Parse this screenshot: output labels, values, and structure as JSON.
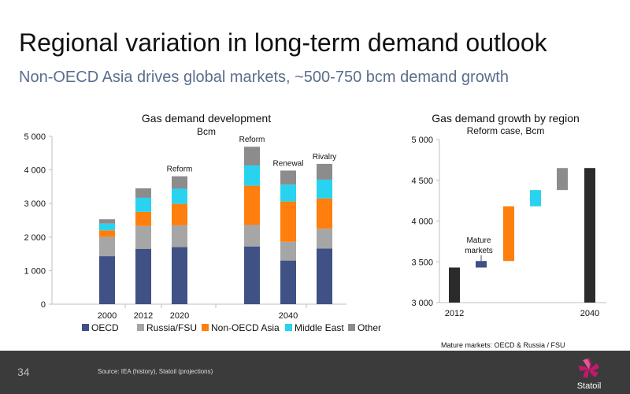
{
  "slide": {
    "title": "Regional variation in long-term demand outlook",
    "subtitle": "Non-OECD Asia drives global markets, ~500-750 bcm demand growth",
    "page_number": "34",
    "source": "Source: IEA (history), Statoil (projections)",
    "note": "Mature markets: OECD & Russia / FSU",
    "logo_text": "Statoil"
  },
  "colors": {
    "OECD": "#3f5185",
    "Russia/FSU": "#a6a6a6",
    "Non-OECD Asia": "#ff7f0e",
    "Middle East": "#29d3f0",
    "Other": "#8c8c8c",
    "dark_bar": "#2b2b2b",
    "footer_bg": "#3b3b3b",
    "logo": "#c3186b"
  },
  "chart_data": [
    {
      "type": "bar",
      "stacked": true,
      "title": "Gas demand development",
      "subtitle": "Bcm",
      "ylim": [
        0,
        5000
      ],
      "yticks": [
        "0",
        "1 000",
        "2 000",
        "3 000",
        "4 000",
        "5 000"
      ],
      "categories": [
        "2000",
        "2012",
        "2020",
        "",
        "2040",
        ""
      ],
      "bar_labels": [
        "",
        "",
        "Reform",
        "Reform",
        "Renewal",
        "Rivalry"
      ],
      "series": [
        {
          "name": "OECD",
          "values": [
            1430,
            1650,
            1700,
            1720,
            1300,
            1660
          ]
        },
        {
          "name": "Russia/FSU",
          "values": [
            570,
            680,
            650,
            640,
            560,
            590
          ]
        },
        {
          "name": "Non-OECD Asia",
          "values": [
            200,
            420,
            640,
            1170,
            1200,
            900
          ]
        },
        {
          "name": "Middle East",
          "values": [
            200,
            420,
            450,
            600,
            500,
            560
          ]
        },
        {
          "name": "Other",
          "values": [
            130,
            280,
            370,
            560,
            420,
            470
          ]
        }
      ],
      "legend": [
        "OECD",
        "Russia/FSU",
        "Non-OECD Asia",
        "Middle East",
        "Other"
      ],
      "legend_position": "bottom"
    },
    {
      "type": "waterfall",
      "title": "Gas demand growth by region",
      "subtitle": "Reform case, Bcm",
      "ylim": [
        3000,
        5000
      ],
      "yticks": [
        "3 000",
        "3 500",
        "4 000",
        "4 500",
        "5 000"
      ],
      "categories": [
        "2012",
        "",
        "",
        "",
        "",
        "2040"
      ],
      "annotation": "Mature markets",
      "steps": [
        {
          "category": "2012",
          "start": 3000,
          "end": 3430,
          "color_key": "dark_bar"
        },
        {
          "category": "Mature markets",
          "start": 3430,
          "end": 3510,
          "color_key": "OECD"
        },
        {
          "category": "Non-OECD Asia",
          "start": 3510,
          "end": 4180,
          "color_key": "Non-OECD Asia"
        },
        {
          "category": "Middle East",
          "start": 4180,
          "end": 4380,
          "color_key": "Middle East"
        },
        {
          "category": "Other",
          "start": 4380,
          "end": 4650,
          "color_key": "Other"
        },
        {
          "category": "2040",
          "start": 3000,
          "end": 4650,
          "color_key": "dark_bar"
        }
      ]
    }
  ]
}
